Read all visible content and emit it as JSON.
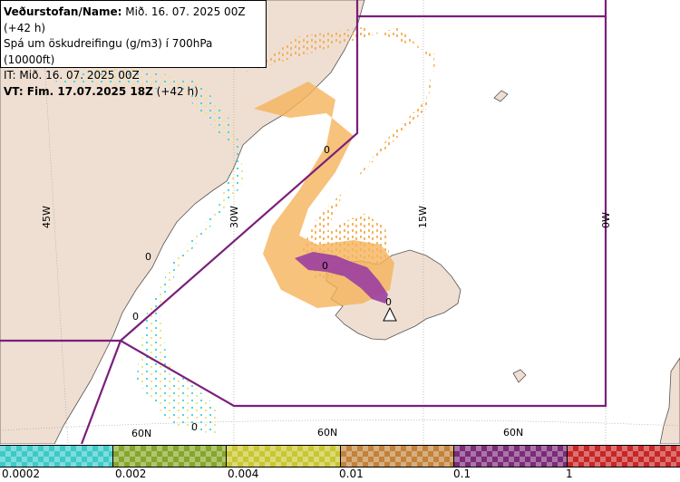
{
  "header": {
    "line1_bold": "Veðurstofan/Name:",
    "line1_rest": " Mið. 16. 07. 2025 00Z (+42 h)",
    "line2": "Spá um öskudreifingu (g/m3) í 700hPa (10000ft)",
    "line3": "IT: Mið. 16. 07. 2025 00Z",
    "line4_bold": "VT: Fim. 17.07.2025 18Z",
    "line4_rest": " (+42 h)"
  },
  "map": {
    "longitude_labels": [
      "45W",
      "30W",
      "15W",
      "0W"
    ],
    "latitude_labels": [
      "60N",
      "60N",
      "60N"
    ],
    "contour_labels": [
      "0",
      "0",
      "0",
      "0",
      "0",
      "0"
    ],
    "colors": {
      "land": "#efdfd2",
      "sea": "#ffffff",
      "boundary": "#7b1f7b",
      "grid": "#999999",
      "ash_low_cyan": "#45d6d6",
      "ash_low_yellow": "#f2e07a",
      "ash_medium": "#f5b35a",
      "ash_high": "#9b3fa0"
    },
    "volcano_icon": "volcano-triangle-icon"
  },
  "legend": {
    "colors": [
      "#3cc9c9",
      "#86a629",
      "#c9c62f",
      "#c2823a",
      "#7b2b78",
      "#c82626"
    ],
    "ticks": [
      "0.0002",
      "0.002",
      "0.004",
      "0.01",
      "0.1",
      "1"
    ]
  }
}
